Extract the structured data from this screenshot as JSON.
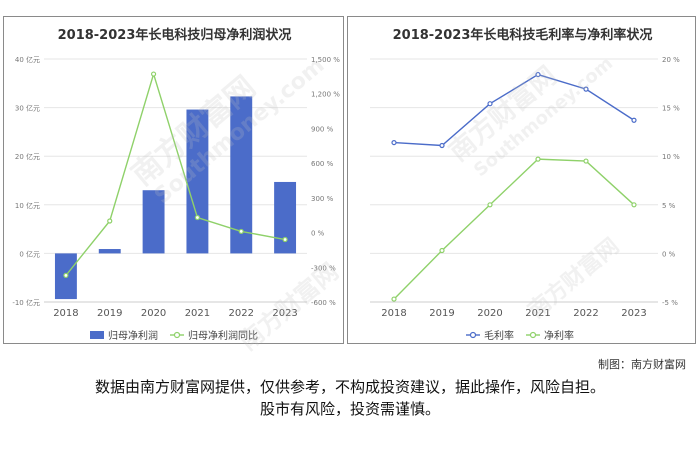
{
  "chart_data": [
    {
      "type": "bar",
      "title": "2018-2023年长电科技归母净利润状况",
      "categories": [
        "2018",
        "2019",
        "2020",
        "2021",
        "2022",
        "2023"
      ],
      "y_left": {
        "ylim": [
          -10,
          40
        ],
        "ticks": [
          -10,
          0,
          10,
          20,
          30,
          40
        ],
        "tick_labels": [
          "-10 亿元",
          "0 亿元",
          "10 亿元",
          "20 亿元",
          "30 亿元",
          "40 亿元"
        ]
      },
      "y_right": {
        "ylim": [
          -600,
          1500
        ],
        "ticks": [
          -600,
          -300,
          0,
          300,
          600,
          900,
          1200,
          1500
        ],
        "tick_labels": [
          "-600 %",
          "-300 %",
          "0 %",
          "300 %",
          "600 %",
          "900 %",
          "1,200 %",
          "1,500 %"
        ]
      },
      "series": [
        {
          "name": "归母净利润",
          "kind": "bar",
          "axis": "left",
          "color": "#4b6cc9",
          "values": [
            -9.4,
            0.9,
            13.0,
            29.6,
            32.3,
            14.7
          ]
        },
        {
          "name": "归母净利润同比",
          "kind": "line",
          "axis": "right",
          "color": "#8fd16a",
          "values": [
            -370,
            100,
            1370,
            130,
            10,
            -60
          ]
        }
      ],
      "legend": "bottom"
    },
    {
      "type": "line",
      "title": "2018-2023年长电科技毛利率与净利率状况",
      "categories": [
        "2018",
        "2019",
        "2020",
        "2021",
        "2022",
        "2023"
      ],
      "y_right": {
        "ylim": [
          -5,
          20
        ],
        "ticks": [
          -5,
          0,
          5,
          10,
          15,
          20
        ],
        "tick_labels": [
          "-5 %",
          "0 %",
          "5 %",
          "10 %",
          "15 %",
          "20 %"
        ]
      },
      "series": [
        {
          "name": "毛利率",
          "kind": "line",
          "axis": "right",
          "color": "#4b6cc9",
          "values": [
            11.4,
            11.1,
            15.4,
            18.4,
            16.9,
            13.7
          ]
        },
        {
          "name": "净利率",
          "kind": "line",
          "axis": "right",
          "color": "#8fd16a",
          "values": [
            -4.7,
            0.3,
            5.0,
            9.7,
            9.5,
            5.0
          ]
        }
      ],
      "legend": "bottom"
    }
  ],
  "credit": "制图：南方财富网",
  "disclaimer": [
    "数据由南方财富网提供，仅供参考，不构成投资建议，据此操作，风险自担。",
    "股市有风险，投资需谨慎。"
  ],
  "watermark": [
    "南方财富网",
    "Southmoney.com"
  ]
}
